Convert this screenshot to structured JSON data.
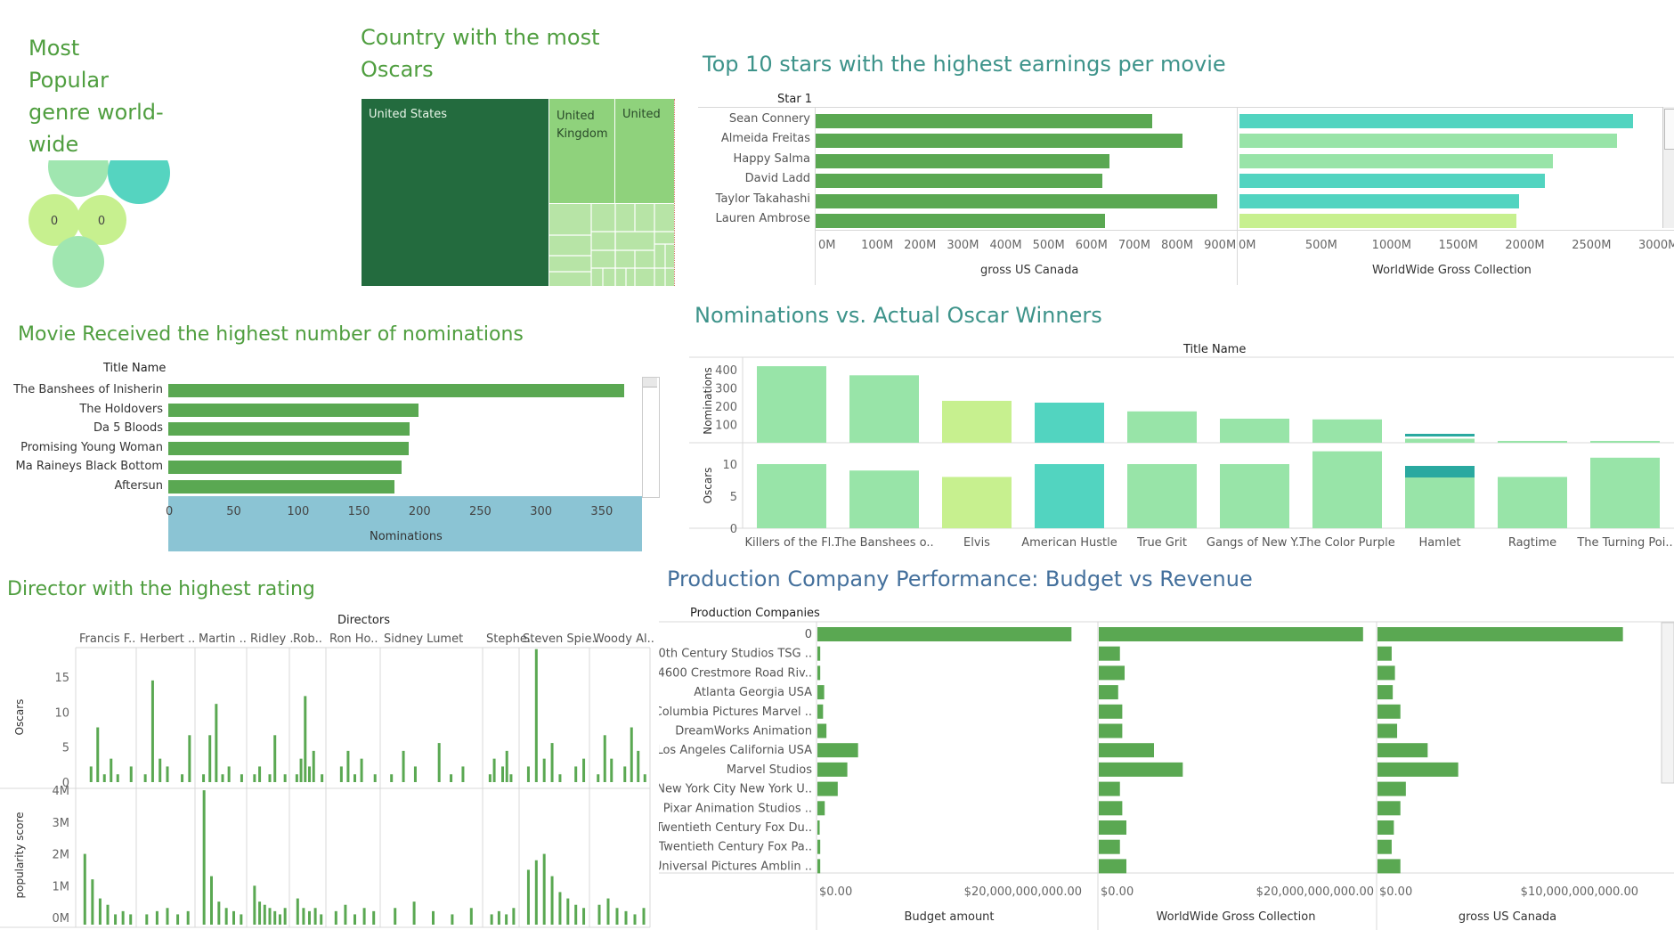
{
  "bubble_panel": {
    "title": "Most\nPopular\ngenre world-\nwide",
    "bubble_label": "0"
  },
  "treemap_panel": {
    "title": "Country with the most\nOscars",
    "countries": [
      "United States",
      "United\nKingdom",
      "United"
    ]
  },
  "stars_panel": {
    "title": "Top 10 stars with the highest earnings per movie",
    "column_header": "Star 1",
    "left_axis_title": "gross US Canada",
    "right_axis_title": "WorldWide Gross Collection",
    "left_ticks": [
      "0M",
      "100M",
      "200M",
      "300M",
      "400M",
      "500M",
      "600M",
      "700M",
      "800M",
      "900M"
    ],
    "right_ticks": [
      "0M",
      "500M",
      "1000M",
      "1500M",
      "2000M",
      "2500M",
      "3000M"
    ]
  },
  "nominations_panel": {
    "title": "Movie Received the highest number of nominations",
    "column_header": "Title Name",
    "axis_title": "Nominations",
    "ticks": [
      "0",
      "50",
      "100",
      "150",
      "200",
      "250",
      "300",
      "350"
    ]
  },
  "nom_vs_oscar_panel": {
    "title": "Nominations vs. Actual Oscar Winners",
    "column_header": "Title Name",
    "top_axis_title": "Nominations",
    "bottom_axis_title": "Oscars",
    "top_ticks": [
      "400",
      "300",
      "200",
      "100"
    ],
    "bottom_ticks": [
      "10",
      "5",
      "0"
    ]
  },
  "director_panel": {
    "title": "Director with the highest rating",
    "column_header": "Directors",
    "directors": [
      "Francis F..",
      "Herbert ..",
      "Martin ..",
      "Ridley ..",
      "Rob..",
      "Ron Ho..",
      "Sidney Lumet",
      "Stephe..",
      "Steven Spie..",
      "Woody Al.."
    ],
    "top_axis_title": "Oscars",
    "bottom_axis_title": "popularity score",
    "top_ticks": [
      "15",
      "10",
      "5",
      "0"
    ],
    "bottom_ticks": [
      "4M",
      "3M",
      "2M",
      "1M",
      "0M"
    ]
  },
  "production_panel": {
    "title": "Production Company Performance: Budget vs Revenue",
    "column_header": "Production Companies",
    "axis_titles": [
      "Budget amount",
      "WorldWide Gross Collection",
      "gross US Canada"
    ],
    "ticks": [
      [
        "$0.00",
        "$20,000,000,000.00"
      ],
      [
        "$0.00",
        "$20,000,000,000.00"
      ],
      [
        "$0.00",
        "$10,000,000,000.00"
      ]
    ]
  },
  "colors": {
    "green_dark": "#236b3e",
    "green": "#5aa852",
    "green_light": "#93d47f",
    "mint": "#98e4a8",
    "teal": "#52d4c0",
    "lime": "#c7f08f",
    "scroll_blue": "#8bc4d4"
  },
  "chart_data": [
    {
      "type": "scatter",
      "title": "Most Popular genre world-wide",
      "labels": [
        "0",
        "0"
      ]
    },
    {
      "type": "heatmap",
      "title": "Country with the most Oscars",
      "categories": [
        "United States",
        "United Kingdom",
        "United"
      ]
    },
    {
      "type": "bar",
      "title": "Top 10 stars with the highest earnings per movie",
      "categories": [
        "Sean Connery",
        "Almeida Freitas",
        "Happy Salma",
        "David Ladd",
        "Taylor Takahashi",
        "Lauren Ambrose"
      ],
      "series": [
        {
          "name": "gross US Canada",
          "values": [
            785,
            857,
            685,
            670,
            937,
            675
          ]
        },
        {
          "name": "WorldWide Gross Collection",
          "values": [
            2950,
            2830,
            2350,
            2290,
            2100,
            2075
          ]
        }
      ],
      "xlim_left": [
        0,
        960
      ],
      "xlim_right": [
        0,
        3100
      ]
    },
    {
      "type": "bar",
      "title": "Movie Received the highest number of nominations",
      "categories": [
        "The Banshees of Inisherin",
        "The Holdovers",
        "Da 5 Bloods",
        "Promising Young Woman",
        "Ma Raineys Black Bottom",
        "Aftersun"
      ],
      "values": [
        375,
        206,
        199,
        198,
        192,
        186
      ],
      "xlabel": "Nominations",
      "xlim": [
        0,
        390
      ]
    },
    {
      "type": "bar",
      "title": "Nominations vs. Actual Oscar Winners",
      "categories": [
        "Killers of the Fl..",
        "The Banshees o..",
        "Elvis",
        "American Hustle",
        "True Grit",
        "Gangs of New Y..",
        "The Color Purple",
        "Hamlet",
        "Ragtime",
        "The Turning Poi.."
      ],
      "series": [
        {
          "name": "Nominations",
          "values": [
            420,
            370,
            230,
            220,
            172,
            132,
            128,
            22,
            10,
            10
          ]
        },
        {
          "name": "Oscars",
          "values": [
            10,
            9,
            8,
            10,
            10,
            10,
            12,
            8,
            8,
            11
          ]
        }
      ],
      "ylim_top": [
        0,
        440
      ],
      "ylim_bottom": [
        0,
        12.5
      ]
    },
    {
      "type": "bar",
      "title": "Director with the highest rating",
      "categories": [
        "Francis F..",
        "Herbert ..",
        "Martin ..",
        "Ridley ..",
        "Rob..",
        "Ron Ho..",
        "Sidney Lumet",
        "Stephe..",
        "Steven Spie..",
        "Woody Al.."
      ],
      "series": [
        {
          "name": "Oscars",
          "values_per_group": [
            [
              0,
              2,
              7,
              1,
              3,
              1,
              0,
              2
            ],
            [
              1,
              13,
              3,
              2,
              0,
              1,
              6
            ],
            [
              1,
              6,
              10,
              1,
              2,
              0,
              1
            ],
            [
              1,
              2,
              0,
              1,
              6,
              0,
              1
            ],
            [
              1,
              3,
              11,
              2,
              4,
              0,
              1
            ],
            [
              0,
              2,
              4,
              1,
              3,
              0,
              1
            ],
            [
              1,
              4,
              2,
              0,
              5,
              1,
              2,
              0
            ],
            [
              1,
              3,
              0,
              2,
              4,
              1,
              0
            ],
            [
              2,
              17,
              3,
              5,
              1,
              0,
              2,
              3
            ],
            [
              1,
              6,
              3,
              0,
              2,
              7,
              4,
              1
            ]
          ]
        },
        {
          "name": "popularity score",
          "values_per_group": [
            [
              2.0,
              1.2,
              0.6,
              0.4,
              0.1,
              0.2,
              0.1
            ],
            [
              0.1,
              0.2,
              0.3,
              0.1,
              0.2
            ],
            [
              4.0,
              1.3,
              0.5,
              0.3,
              0.2,
              0.1
            ],
            [
              1.0,
              0.5,
              0.4,
              0.3,
              0.2,
              0.1,
              0.3
            ],
            [
              0.6,
              0.3,
              0.2,
              0.3,
              0.1
            ],
            [
              0.2,
              0.4,
              0.1,
              0.3,
              0.2
            ],
            [
              0.3,
              0.5,
              0.2,
              0.1,
              0.3
            ],
            [
              0.1,
              0.2,
              0.1,
              0.3
            ],
            [
              1.5,
              1.8,
              2.0,
              1.3,
              0.8,
              0.6,
              0.4,
              0.3
            ],
            [
              0.4,
              0.6,
              0.3,
              0.2,
              0.1,
              0.3
            ]
          ]
        }
      ],
      "ylim_top": [
        0,
        18
      ],
      "ylim_bottom": [
        0,
        4.2
      ]
    },
    {
      "type": "bar",
      "title": "Production Company Performance: Budget vs Revenue",
      "categories": [
        "0",
        "20th Century Studios TSG ..",
        "4600 Crestmore Road Riv..",
        "Atlanta Georgia USA",
        "Columbia Pictures Marvel ..",
        "DreamWorks Animation",
        "Los Angeles California USA",
        "Marvel Studios",
        "New York City New York U..",
        "Pixar Animation Studios ..",
        "Twentieth Century Fox Du..",
        "Twentieth Century Fox Pa..",
        "Universal Pictures Amblin .."
      ],
      "series": [
        {
          "name": "Budget amount",
          "values": [
            45.0,
            0.5,
            0.5,
            1.2,
            1.0,
            1.6,
            7.2,
            5.3,
            3.6,
            1.3,
            0.4,
            0.5,
            0.5
          ]
        },
        {
          "name": "WorldWide Gross Collection",
          "values": [
            45.0,
            3.6,
            4.4,
            3.3,
            4.0,
            4.0,
            9.4,
            14.3,
            3.6,
            4.0,
            4.7,
            3.6,
            4.7
          ]
        },
        {
          "name": "gross US Canada",
          "values": [
            22.5,
            1.3,
            1.6,
            1.4,
            2.1,
            1.8,
            4.6,
            7.4,
            2.6,
            2.1,
            1.5,
            1.3,
            2.1
          ]
        }
      ],
      "xlim": [
        [
          0,
          47
        ],
        [
          0,
          47
        ],
        [
          0,
          24
        ]
      ]
    }
  ]
}
